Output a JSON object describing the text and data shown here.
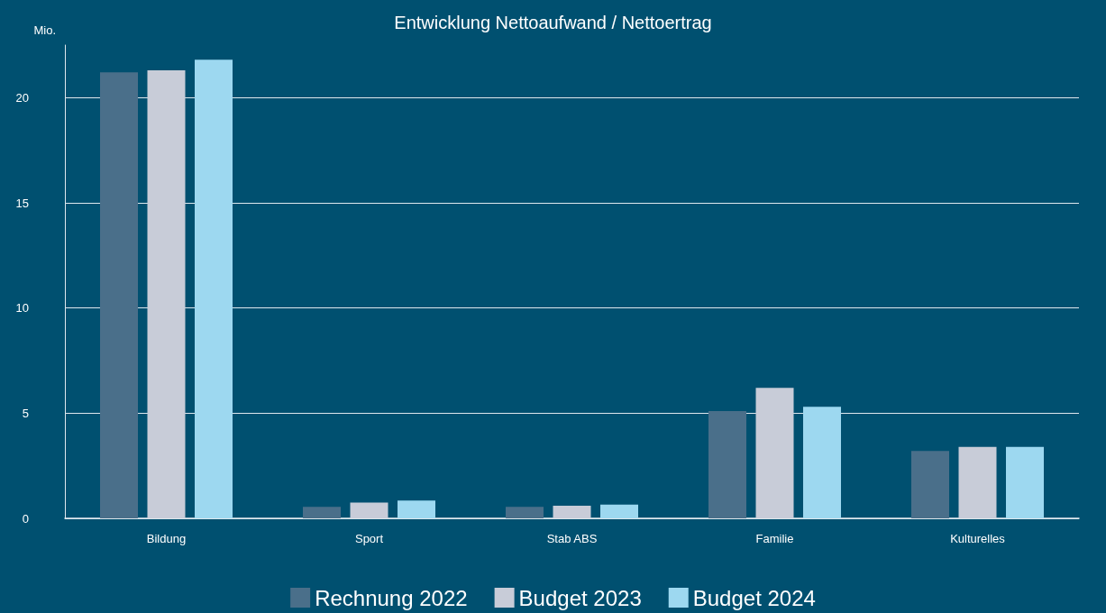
{
  "chart_data": {
    "type": "bar",
    "title": "Entwicklung Nettoaufwand / Nettoertrag",
    "ylabel": "Mio.",
    "categories": [
      "Bildung",
      "Sport",
      "Stab ABS",
      "Familie",
      "Kulturelles"
    ],
    "series": [
      {
        "name": "Rechnung 2022",
        "color": "#4a6f8a",
        "values": [
          21.2,
          0.55,
          0.55,
          5.1,
          3.2
        ]
      },
      {
        "name": "Budget 2023",
        "color": "#c8ccd8",
        "values": [
          21.3,
          0.75,
          0.6,
          6.2,
          3.4
        ]
      },
      {
        "name": "Budget 2024",
        "color": "#9dd8f0",
        "values": [
          21.8,
          0.85,
          0.65,
          5.3,
          3.4
        ]
      }
    ],
    "ylim": [
      0,
      22.5
    ],
    "yticks": [
      0,
      5,
      10,
      15,
      20
    ],
    "grid": "y",
    "legend": "bottom"
  }
}
